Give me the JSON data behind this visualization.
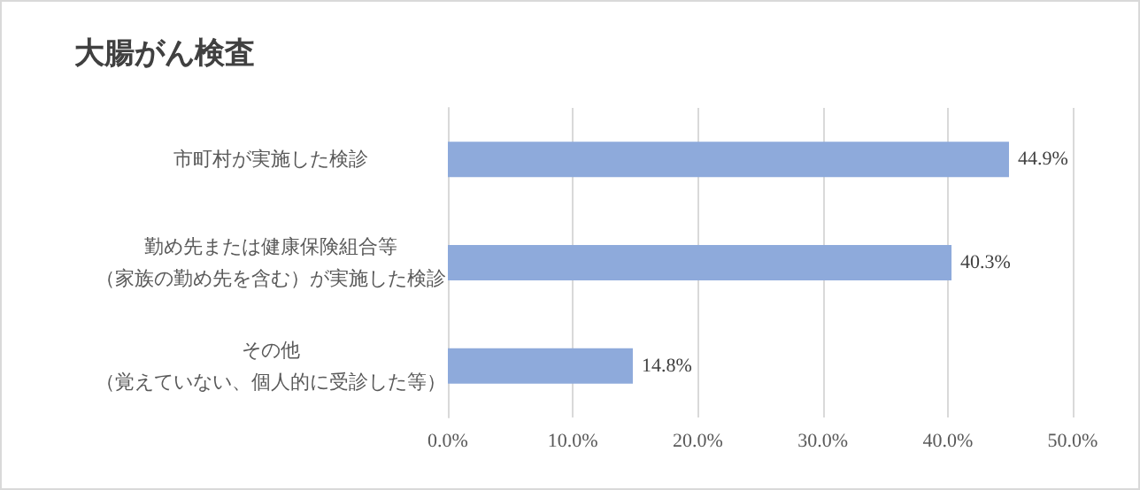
{
  "chart_data": {
    "type": "bar",
    "orientation": "horizontal",
    "title": "大腸がん検査",
    "categories": [
      "市町村が実施した検診",
      "勤め先または健康保険組合等（家族の勤め先を含む）が実施した検診",
      "その他（覚えていない、個人的に受診した等）"
    ],
    "values": [
      44.9,
      40.3,
      14.8
    ],
    "color": "#8eaadb",
    "value_labels": [
      "44.9%",
      "40.3%",
      "14.8%"
    ],
    "xlim": [
      0,
      50
    ],
    "xticks": [
      {
        "value": 0,
        "label": "0.0%"
      },
      {
        "value": 10,
        "label": "10.0%"
      },
      {
        "value": 20,
        "label": "20.0%"
      },
      {
        "value": 30,
        "label": "30.0%"
      },
      {
        "value": 40,
        "label": "40.0%"
      },
      {
        "value": 50,
        "label": "50.0%"
      }
    ],
    "grid": "x"
  }
}
